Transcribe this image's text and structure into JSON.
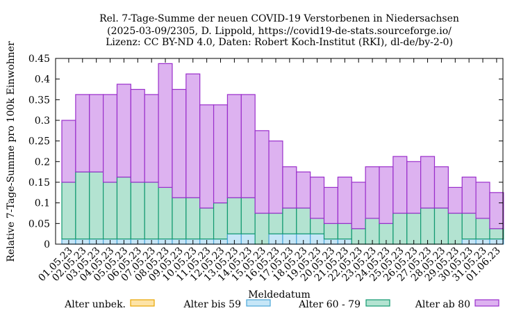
{
  "chart_data": {
    "type": "bar",
    "stacked": true,
    "title_lines": [
      "Rel. 7-Tage-Summe der neuen COVID-19 Verstorbenen in Niedersachsen",
      "(2025-03-09/2305, D. Lippold, https://covid19-de-stats.sourceforge.io/",
      "Lizenz: CC BY-ND 4.0, Daten: Robert Koch-Institut (RKI), dl-de/by-2-0)"
    ],
    "xlabel": "Meldedatum",
    "ylabel": "Relative 7-Tage-Summe pro 100k Einwohner",
    "ylim": [
      0,
      0.45
    ],
    "yticks": [
      "0",
      "0.05",
      "0.1",
      "0.15",
      "0.2",
      "0.25",
      "0.3",
      "0.35",
      "0.4",
      "0.45"
    ],
    "grid": false,
    "legend_position": "bottom",
    "categories": [
      "01.05.23",
      "02.05.23",
      "03.05.23",
      "04.05.23",
      "05.05.23",
      "06.05.23",
      "07.05.23",
      "08.05.23",
      "09.05.23",
      "10.05.23",
      "11.05.23",
      "12.05.23",
      "13.05.23",
      "14.05.23",
      "15.05.23",
      "16.05.23",
      "17.05.23",
      "18.05.23",
      "19.05.23",
      "20.05.23",
      "21.05.23",
      "22.05.23",
      "23.05.23",
      "24.05.23",
      "25.05.23",
      "26.05.23",
      "27.05.23",
      "28.05.23",
      "29.05.23",
      "30.05.23",
      "31.05.23",
      "01.06.23"
    ],
    "series": [
      {
        "name": "Alter unbek.",
        "color": "#fde3a7",
        "stroke": "#e8a500",
        "values": [
          0,
          0,
          0,
          0,
          0,
          0,
          0,
          0,
          0,
          0,
          0,
          0,
          0,
          0,
          0,
          0,
          0,
          0,
          0,
          0,
          0,
          0,
          0,
          0,
          0,
          0,
          0,
          0,
          0,
          0,
          0,
          0
        ]
      },
      {
        "name": "Alter bis 59",
        "color": "#c6e6f7",
        "stroke": "#4aa6d8",
        "values": [
          0.0125,
          0.0125,
          0.0125,
          0.0125,
          0.0125,
          0.0125,
          0.0125,
          0.0125,
          0.0125,
          0.0125,
          0.0125,
          0.0125,
          0.025,
          0.025,
          0,
          0.025,
          0.025,
          0.025,
          0.025,
          0.0125,
          0.0125,
          0,
          0,
          0,
          0,
          0,
          0,
          0,
          0,
          0.0125,
          0.0125,
          0.0125
        ]
      },
      {
        "name": "Alter 60 - 79",
        "color": "#b3e3d1",
        "stroke": "#129970",
        "values": [
          0.1375,
          0.1625,
          0.1625,
          0.1375,
          0.15,
          0.1375,
          0.1375,
          0.125,
          0.1,
          0.1,
          0.075,
          0.0875,
          0.0875,
          0.0875,
          0.075,
          0.05,
          0.0625,
          0.0625,
          0.0375,
          0.0375,
          0.0375,
          0.0375,
          0.0625,
          0.05,
          0.075,
          0.075,
          0.0875,
          0.0875,
          0.075,
          0.0625,
          0.05,
          0.025
        ]
      },
      {
        "name": "Alter ab 80",
        "color": "#ddb2f0",
        "stroke": "#9a2ecb",
        "values": [
          0.15,
          0.1875,
          0.1875,
          0.2125,
          0.225,
          0.225,
          0.2125,
          0.3,
          0.2625,
          0.3,
          0.25,
          0.2375,
          0.25,
          0.25,
          0.2,
          0.175,
          0.1,
          0.0875,
          0.1,
          0.0875,
          0.1125,
          0.1125,
          0.125,
          0.1375,
          0.1375,
          0.125,
          0.125,
          0.1,
          0.0625,
          0.0875,
          0.0875,
          0.0875
        ]
      }
    ]
  }
}
